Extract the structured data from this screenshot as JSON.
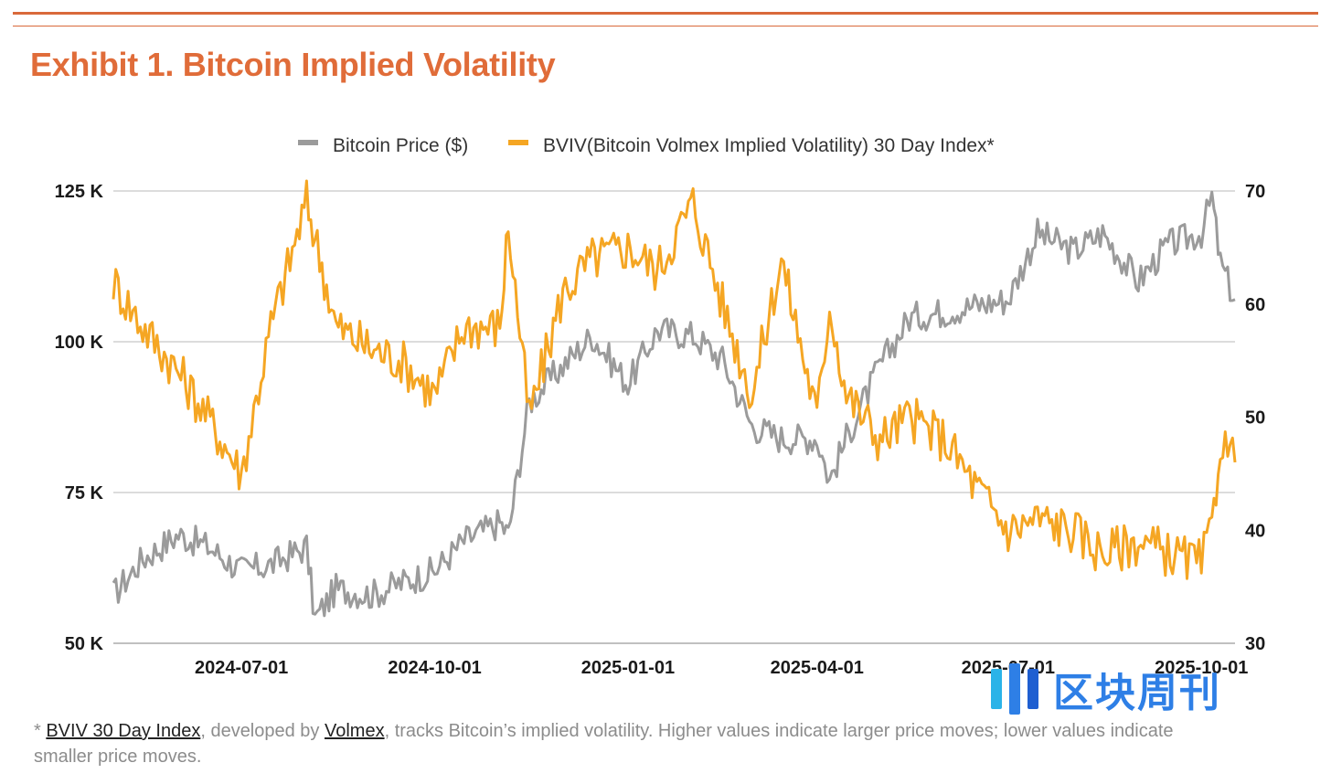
{
  "title": "Exhibit 1. Bitcoin Implied Volatility",
  "chart_data": {
    "type": "line",
    "title": "Exhibit 1. Bitcoin Implied Volatility",
    "x_tick_labels": [
      "2024-07-01",
      "2024-10-01",
      "2025-01-01",
      "2025-04-01",
      "2025-07-01",
      "2025-10-01"
    ],
    "y_left": {
      "ticks": [
        50000,
        75000,
        100000,
        125000
      ],
      "tick_labels": [
        "50 K",
        "75 K",
        "100 K",
        "125 K"
      ],
      "ylim": [
        50000,
        125000
      ]
    },
    "y_right": {
      "ticks": [
        30,
        40,
        50,
        60,
        70
      ],
      "tick_labels": [
        "30",
        "40",
        "50",
        "60",
        "70"
      ],
      "ylim": [
        30,
        70
      ]
    },
    "grid": true,
    "legend_position": "top-center",
    "series": [
      {
        "name": "Bitcoin Price ($)",
        "axis": "left",
        "color": "#9b9b9b",
        "x": [
          "2024-05-01",
          "2024-05-15",
          "2024-06-01",
          "2024-06-15",
          "2024-07-01",
          "2024-07-15",
          "2024-08-01",
          "2024-08-05",
          "2024-08-15",
          "2024-09-01",
          "2024-09-15",
          "2024-10-01",
          "2024-10-15",
          "2024-11-01",
          "2024-11-05",
          "2024-11-15",
          "2024-12-01",
          "2024-12-15",
          "2025-01-01",
          "2025-01-15",
          "2025-02-01",
          "2025-02-15",
          "2025-03-01",
          "2025-03-15",
          "2025-04-01",
          "2025-04-07",
          "2025-04-15",
          "2025-05-01",
          "2025-05-15",
          "2025-06-01",
          "2025-06-15",
          "2025-07-01",
          "2025-07-15",
          "2025-08-01",
          "2025-08-15",
          "2025-09-01",
          "2025-09-15",
          "2025-10-01",
          "2025-10-06",
          "2025-10-10",
          "2025-10-17"
        ],
        "values": [
          58000,
          64000,
          68000,
          66000,
          62000,
          63000,
          66000,
          54000,
          59000,
          58000,
          60000,
          62000,
          67000,
          70000,
          68000,
          90000,
          96000,
          101000,
          93000,
          102000,
          101000,
          97000,
          86000,
          84000,
          84000,
          77000,
          84000,
          96000,
          104000,
          105000,
          106000,
          107000,
          118000,
          115000,
          118000,
          110000,
          116000,
          118000,
          124000,
          113000,
          107000
        ]
      },
      {
        "name": "BVIV(Bitcoin Volmex Implied Volatility) 30 Day Index*",
        "axis": "right",
        "color": "#f5a623",
        "x": [
          "2024-05-01",
          "2024-05-15",
          "2024-06-01",
          "2024-06-15",
          "2024-07-01",
          "2024-07-15",
          "2024-08-01",
          "2024-08-05",
          "2024-08-15",
          "2024-09-01",
          "2024-09-15",
          "2024-10-01",
          "2024-10-15",
          "2024-11-01",
          "2024-11-05",
          "2024-11-15",
          "2024-12-01",
          "2024-12-15",
          "2025-01-01",
          "2025-01-15",
          "2025-02-01",
          "2025-02-15",
          "2025-03-01",
          "2025-03-15",
          "2025-04-01",
          "2025-04-07",
          "2025-04-15",
          "2025-05-01",
          "2025-05-15",
          "2025-06-01",
          "2025-06-15",
          "2025-07-01",
          "2025-07-15",
          "2025-08-01",
          "2025-08-15",
          "2025-09-01",
          "2025-09-15",
          "2025-10-01",
          "2025-10-06",
          "2025-10-10",
          "2025-10-17"
        ],
        "values": [
          62,
          58,
          54,
          50,
          45,
          58,
          69,
          66,
          58,
          56,
          55,
          52,
          58,
          58,
          67,
          50,
          61,
          64,
          65,
          63,
          69,
          60,
          52,
          64,
          50,
          60,
          52,
          48,
          50,
          48,
          44,
          40,
          41,
          40,
          38,
          39,
          38,
          37,
          40,
          48,
          46
        ]
      }
    ]
  },
  "footnote": {
    "prefix": "* ",
    "link1": "BVIV 30 Day Index",
    "mid": ", developed by ",
    "link2": "Volmex",
    "rest": ", tracks Bitcoin’s implied volatility. Higher values indicate larger price moves; lower values indicate smaller price moves."
  },
  "watermark": {
    "text": "区块周刊",
    "color": "#2e7fe6"
  }
}
